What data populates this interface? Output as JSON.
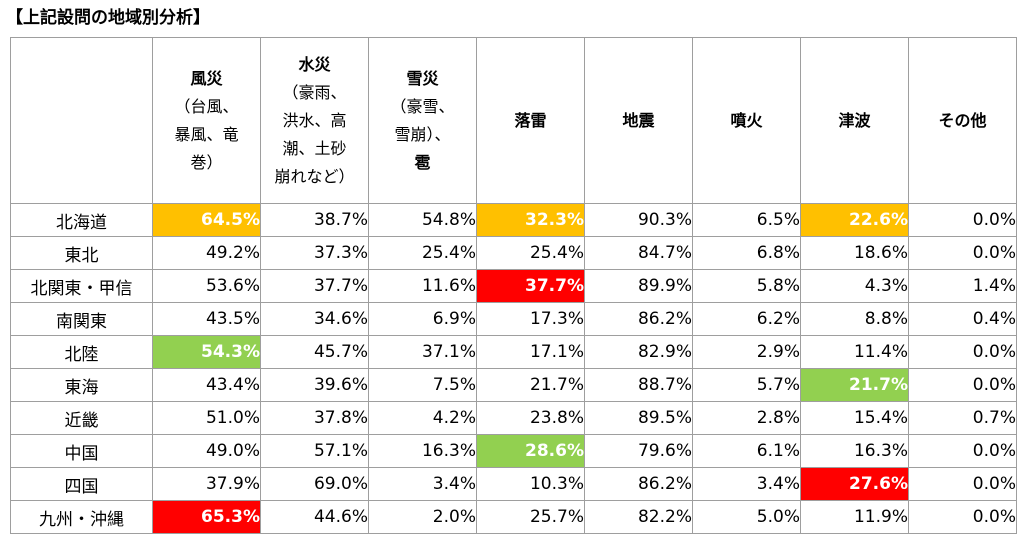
{
  "title": "【上記設問の地域別分析】",
  "colors": {
    "orange": "#ffc000",
    "red": "#ff0000",
    "green": "#92d050"
  },
  "columns": [
    {
      "name": "風災",
      "sub": "（台風、\n暴風、竜\n巻）",
      "tail": ""
    },
    {
      "name": "水災",
      "sub": "（豪雨、\n洪水、高\n潮、土砂\n崩れなど）",
      "tail": ""
    },
    {
      "name": "雪災",
      "sub": "（豪雪、\n雪崩）、",
      "tail": "雹"
    },
    {
      "name": "落雷",
      "sub": "",
      "tail": ""
    },
    {
      "name": "地震",
      "sub": "",
      "tail": ""
    },
    {
      "name": "噴火",
      "sub": "",
      "tail": ""
    },
    {
      "name": "津波",
      "sub": "",
      "tail": ""
    },
    {
      "name": "その他",
      "sub": "",
      "tail": ""
    }
  ],
  "rows": [
    {
      "region": "北海道",
      "values": [
        "64.5%",
        "38.7%",
        "54.8%",
        "32.3%",
        "90.3%",
        "6.5%",
        "22.6%",
        "0.0%"
      ],
      "highlight": [
        "orange",
        "",
        "",
        "orange",
        "",
        "",
        "orange",
        ""
      ]
    },
    {
      "region": "東北",
      "values": [
        "49.2%",
        "37.3%",
        "25.4%",
        "25.4%",
        "84.7%",
        "6.8%",
        "18.6%",
        "0.0%"
      ],
      "highlight": [
        "",
        "",
        "",
        "",
        "",
        "",
        "",
        ""
      ]
    },
    {
      "region": "北関東・甲信",
      "values": [
        "53.6%",
        "37.7%",
        "11.6%",
        "37.7%",
        "89.9%",
        "5.8%",
        "4.3%",
        "1.4%"
      ],
      "highlight": [
        "",
        "",
        "",
        "red",
        "",
        "",
        "",
        ""
      ]
    },
    {
      "region": "南関東",
      "values": [
        "43.5%",
        "34.6%",
        "6.9%",
        "17.3%",
        "86.2%",
        "6.2%",
        "8.8%",
        "0.4%"
      ],
      "highlight": [
        "",
        "",
        "",
        "",
        "",
        "",
        "",
        ""
      ]
    },
    {
      "region": "北陸",
      "values": [
        "54.3%",
        "45.7%",
        "37.1%",
        "17.1%",
        "82.9%",
        "2.9%",
        "11.4%",
        "0.0%"
      ],
      "highlight": [
        "green",
        "",
        "",
        "",
        "",
        "",
        "",
        ""
      ]
    },
    {
      "region": "東海",
      "values": [
        "43.4%",
        "39.6%",
        "7.5%",
        "21.7%",
        "88.7%",
        "5.7%",
        "21.7%",
        "0.0%"
      ],
      "highlight": [
        "",
        "",
        "",
        "",
        "",
        "",
        "green",
        ""
      ]
    },
    {
      "region": "近畿",
      "values": [
        "51.0%",
        "37.8%",
        "4.2%",
        "23.8%",
        "89.5%",
        "2.8%",
        "15.4%",
        "0.7%"
      ],
      "highlight": [
        "",
        "",
        "",
        "",
        "",
        "",
        "",
        ""
      ]
    },
    {
      "region": "中国",
      "values": [
        "49.0%",
        "57.1%",
        "16.3%",
        "28.6%",
        "79.6%",
        "6.1%",
        "16.3%",
        "0.0%"
      ],
      "highlight": [
        "",
        "",
        "",
        "green",
        "",
        "",
        "",
        ""
      ]
    },
    {
      "region": "四国",
      "values": [
        "37.9%",
        "69.0%",
        "3.4%",
        "10.3%",
        "86.2%",
        "3.4%",
        "27.6%",
        "0.0%"
      ],
      "highlight": [
        "",
        "",
        "",
        "",
        "",
        "",
        "red",
        ""
      ]
    },
    {
      "region": "九州・沖縄",
      "values": [
        "65.3%",
        "44.6%",
        "2.0%",
        "25.7%",
        "82.2%",
        "5.0%",
        "11.9%",
        "0.0%"
      ],
      "highlight": [
        "red",
        "",
        "",
        "",
        "",
        "",
        "",
        ""
      ]
    }
  ]
}
